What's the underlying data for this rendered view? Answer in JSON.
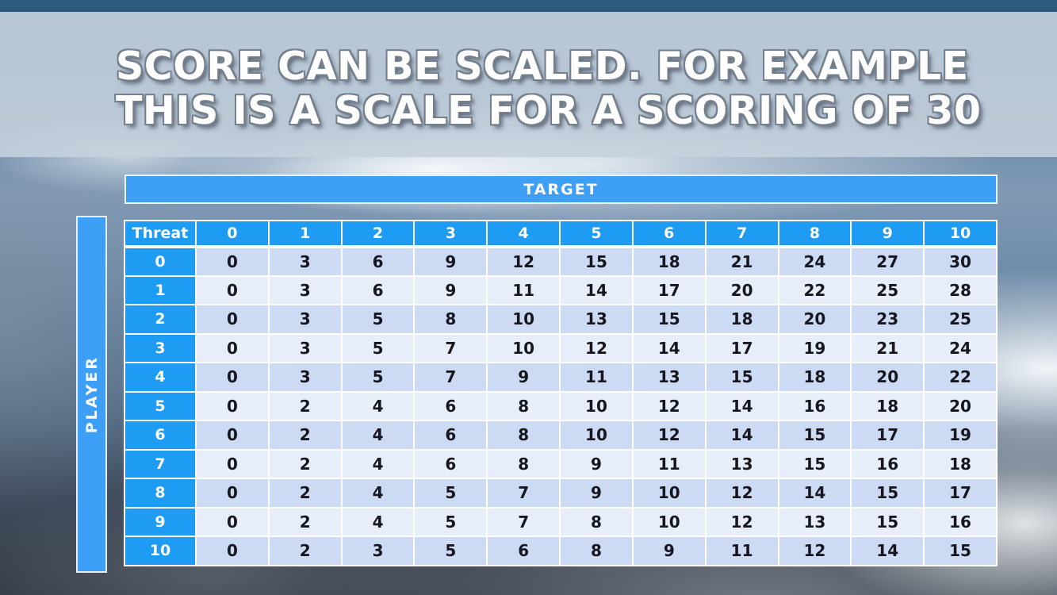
{
  "title": {
    "line1": "SCORE CAN BE SCALED. FOR EXAMPLE",
    "line2": "THIS IS A SCALE FOR A SCORING OF 30"
  },
  "table": {
    "target_label": "TARGET",
    "player_label": "PLAYER",
    "corner_label": "Threat",
    "column_headers": [
      "0",
      "1",
      "2",
      "3",
      "4",
      "5",
      "6",
      "7",
      "8",
      "9",
      "10"
    ],
    "row_headers": [
      "0",
      "1",
      "2",
      "3",
      "4",
      "5",
      "6",
      "7",
      "8",
      "9",
      "10"
    ],
    "rows": [
      [
        0,
        3,
        6,
        9,
        12,
        15,
        18,
        21,
        24,
        27,
        30
      ],
      [
        0,
        3,
        6,
        9,
        11,
        14,
        17,
        20,
        22,
        25,
        28
      ],
      [
        0,
        3,
        5,
        8,
        10,
        13,
        15,
        18,
        20,
        23,
        25
      ],
      [
        0,
        3,
        5,
        7,
        10,
        12,
        14,
        17,
        19,
        21,
        24
      ],
      [
        0,
        3,
        5,
        7,
        9,
        11,
        13,
        15,
        18,
        20,
        22
      ],
      [
        0,
        2,
        4,
        6,
        8,
        10,
        12,
        14,
        16,
        18,
        20
      ],
      [
        0,
        2,
        4,
        6,
        8,
        10,
        12,
        14,
        15,
        17,
        19
      ],
      [
        0,
        2,
        4,
        6,
        8,
        9,
        11,
        13,
        15,
        16,
        18
      ],
      [
        0,
        2,
        4,
        5,
        7,
        9,
        10,
        12,
        14,
        15,
        17
      ],
      [
        0,
        2,
        4,
        5,
        7,
        8,
        10,
        12,
        13,
        15,
        16
      ],
      [
        0,
        2,
        3,
        5,
        6,
        8,
        9,
        11,
        12,
        14,
        15
      ]
    ]
  },
  "chart_data": {
    "type": "table",
    "title": "Score scale for a scoring of 30",
    "x_axis_label": "TARGET",
    "y_axis_label": "PLAYER",
    "corner": "Threat",
    "columns": [
      0,
      1,
      2,
      3,
      4,
      5,
      6,
      7,
      8,
      9,
      10
    ],
    "row_labels": [
      0,
      1,
      2,
      3,
      4,
      5,
      6,
      7,
      8,
      9,
      10
    ],
    "values": [
      [
        0,
        3,
        6,
        9,
        12,
        15,
        18,
        21,
        24,
        27,
        30
      ],
      [
        0,
        3,
        6,
        9,
        11,
        14,
        17,
        20,
        22,
        25,
        28
      ],
      [
        0,
        3,
        5,
        8,
        10,
        13,
        15,
        18,
        20,
        23,
        25
      ],
      [
        0,
        3,
        5,
        7,
        10,
        12,
        14,
        17,
        19,
        21,
        24
      ],
      [
        0,
        3,
        5,
        7,
        9,
        11,
        13,
        15,
        18,
        20,
        22
      ],
      [
        0,
        2,
        4,
        6,
        8,
        10,
        12,
        14,
        16,
        18,
        20
      ],
      [
        0,
        2,
        4,
        6,
        8,
        10,
        12,
        14,
        15,
        17,
        19
      ],
      [
        0,
        2,
        4,
        6,
        8,
        9,
        11,
        13,
        15,
        16,
        18
      ],
      [
        0,
        2,
        4,
        5,
        7,
        9,
        10,
        12,
        14,
        15,
        17
      ],
      [
        0,
        2,
        4,
        5,
        7,
        8,
        10,
        12,
        13,
        15,
        16
      ],
      [
        0,
        2,
        3,
        5,
        6,
        8,
        9,
        11,
        12,
        14,
        15
      ]
    ]
  },
  "colors": {
    "top_bar": "#2d5a7d",
    "header_blue": "#1e9bf2",
    "banner_blue": "#3da0f6",
    "row_even": "#ccdaf3",
    "row_odd": "#e8edfa",
    "title_band": "#c6d1dd"
  }
}
